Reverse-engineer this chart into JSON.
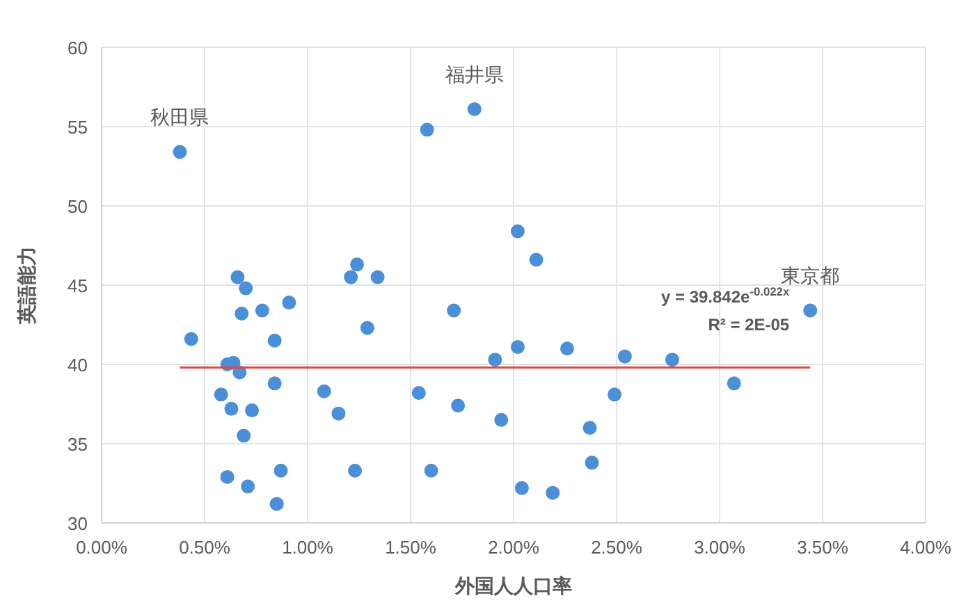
{
  "chart_data": {
    "type": "scatter",
    "xlabel": "外国人人口率",
    "ylabel": "英語能力",
    "xlim": [
      0,
      4
    ],
    "ylim": [
      30,
      60
    ],
    "xticks": [
      {
        "value": 0,
        "label": "0.00%"
      },
      {
        "value": 0.5,
        "label": "0.50%"
      },
      {
        "value": 1,
        "label": "1.00%"
      },
      {
        "value": 1.5,
        "label": "1.50%"
      },
      {
        "value": 2,
        "label": "2.00%"
      },
      {
        "value": 2.5,
        "label": "2.50%"
      },
      {
        "value": 3,
        "label": "3.00%"
      },
      {
        "value": 3.5,
        "label": "3.50%"
      },
      {
        "value": 4,
        "label": "4.00%"
      }
    ],
    "yticks": [
      30,
      35,
      40,
      45,
      50,
      55,
      60
    ],
    "grid": true,
    "series": [
      {
        "marker": "circle",
        "color": "#4a8fd8",
        "x": [
          0.38,
          0.435,
          0.66,
          0.7,
          0.68,
          0.78,
          0.91,
          0.84,
          0.61,
          0.64,
          0.67,
          0.84,
          0.58,
          0.63,
          0.73,
          0.69,
          0.61,
          0.71,
          0.87,
          0.85,
          1.81,
          1.58,
          1.21,
          1.24,
          1.34,
          1.71,
          1.29,
          1.08,
          1.15,
          1.23,
          1.54,
          1.73,
          1.6,
          1.91,
          2.02,
          2.11,
          3.44,
          2.02,
          2.26,
          2.54,
          2.77,
          3.07,
          2.49,
          1.94,
          2.37,
          2.38,
          2.04,
          2.19
        ],
        "values": [
          53.4,
          41.6,
          45.5,
          44.8,
          43.2,
          43.4,
          43.9,
          41.5,
          40.0,
          40.1,
          39.5,
          38.8,
          38.1,
          37.2,
          37.1,
          35.5,
          32.9,
          32.3,
          33.3,
          31.2,
          56.1,
          54.8,
          45.5,
          46.3,
          45.5,
          43.4,
          42.3,
          38.3,
          36.9,
          33.3,
          38.2,
          37.4,
          33.3,
          40.3,
          48.4,
          46.6,
          43.4,
          41.1,
          41.0,
          40.5,
          40.3,
          38.8,
          38.1,
          36.5,
          36.0,
          33.8,
          32.2,
          31.9
        ]
      },
      {
        "type": "line",
        "color": "#e8453c",
        "x": [
          0.38,
          3.44
        ],
        "values": [
          39.8,
          39.8
        ]
      }
    ],
    "annotations": [
      {
        "text": "秋田県",
        "x": 0.38,
        "y": 53.4
      },
      {
        "text": "福井県",
        "x": 1.81,
        "y": 56.1
      },
      {
        "text": "東京都",
        "x": 3.44,
        "y": 43.4
      },
      "y = 39.842e$^{-0.022x}$",
      "R² = 2E-05"
    ]
  }
}
